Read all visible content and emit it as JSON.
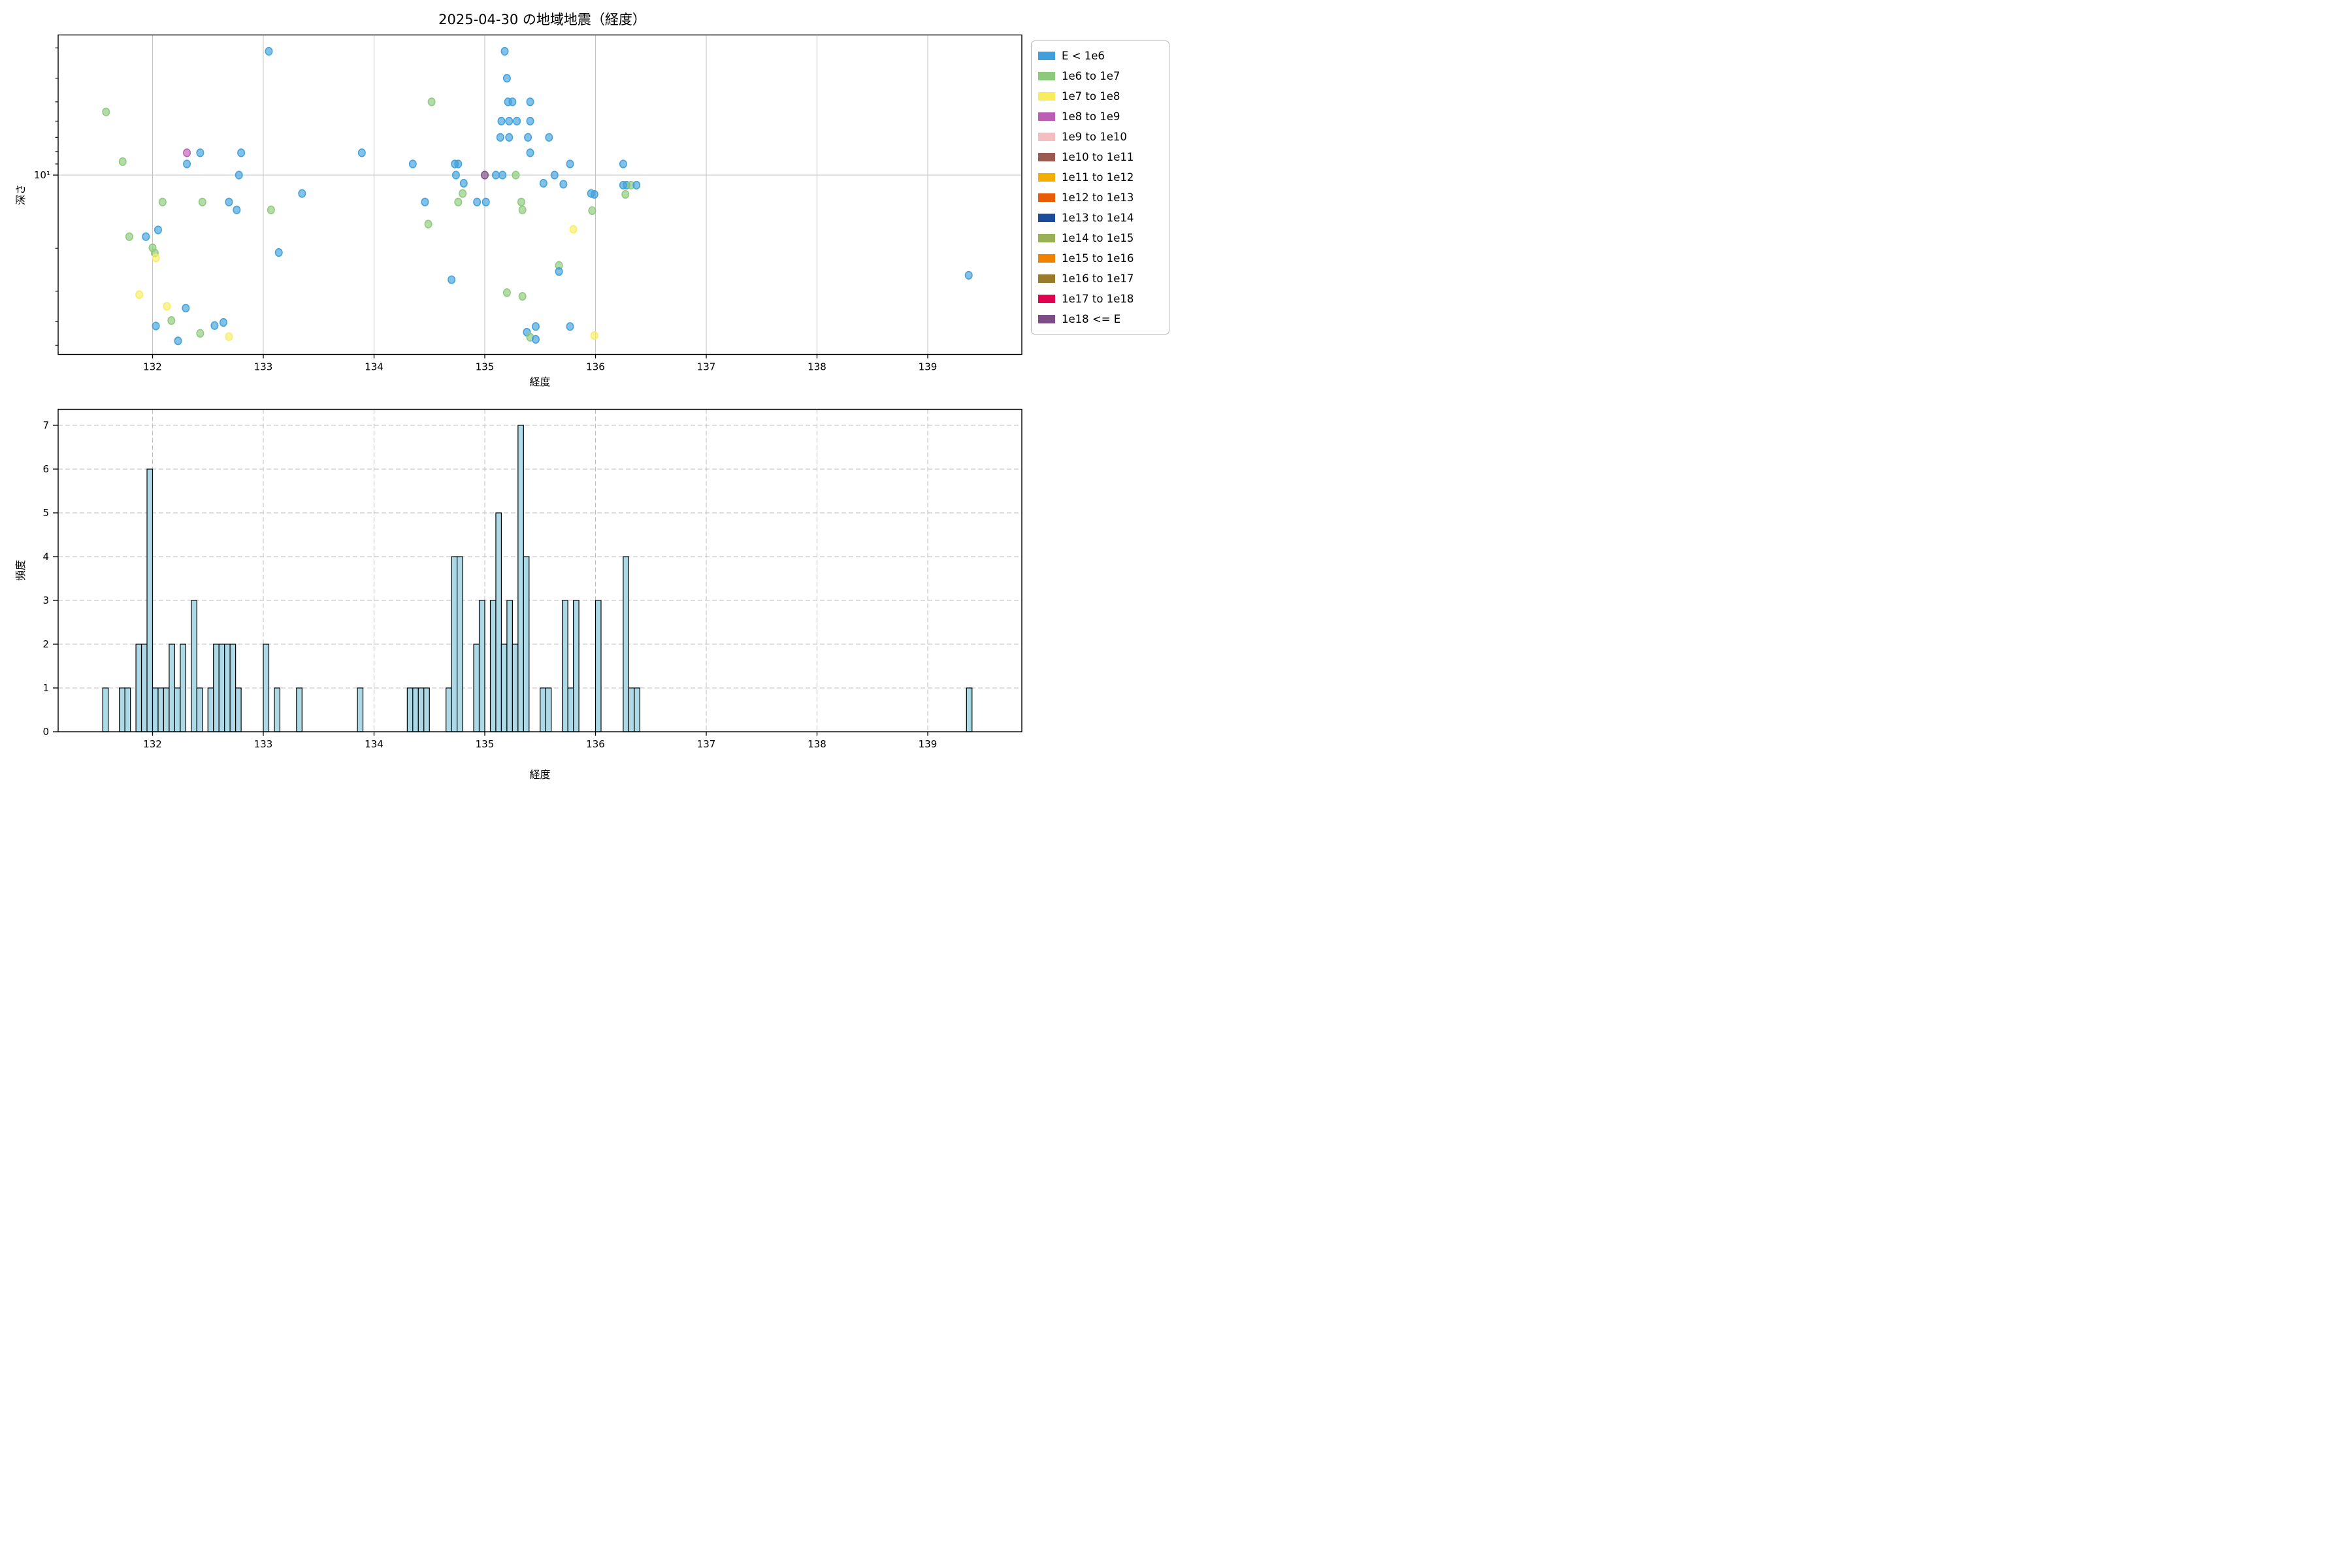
{
  "title": "2025-04-30 の地域地震（経度）",
  "scatter_plot": {
    "xlabel": "経度",
    "ylabel": "深さ",
    "x_ticks": [
      132,
      133,
      134,
      135,
      136,
      137,
      138,
      139
    ],
    "y_major_tick_label": "10¹",
    "y_minor_ticks": [
      3,
      4,
      5,
      6,
      7,
      8,
      9,
      20,
      30,
      40,
      50
    ]
  },
  "histogram_plot": {
    "xlabel": "経度",
    "ylabel": "頻度",
    "x_ticks": [
      132,
      133,
      134,
      135,
      136,
      137,
      138,
      139
    ],
    "y_ticks": [
      0,
      1,
      2,
      3,
      4,
      5,
      6,
      7
    ]
  },
  "legend": [
    {
      "label": "E < 1e6",
      "color": "#3FA0DC"
    },
    {
      "label": "1e6 to 1e7",
      "color": "#8CC97A"
    },
    {
      "label": "1e7 to 1e8",
      "color": "#F9EC5F"
    },
    {
      "label": "1e8 to 1e9",
      "color": "#BC5FB4"
    },
    {
      "label": "1e9 to 1e10",
      "color": "#F4BDC2"
    },
    {
      "label": "1e10 to 1e11",
      "color": "#9B5B53"
    },
    {
      "label": "1e11 to 1e12",
      "color": "#F2AE02"
    },
    {
      "label": "1e12 to 1e13",
      "color": "#E85D04"
    },
    {
      "label": "1e13 to 1e14",
      "color": "#1C4B9B"
    },
    {
      "label": "1e14 to 1e15",
      "color": "#9AB055"
    },
    {
      "label": "1e15 to 1e16",
      "color": "#F08200"
    },
    {
      "label": "1e16 to 1e17",
      "color": "#9A7A2B"
    },
    {
      "label": "1e17 to 1e18",
      "color": "#E00150"
    },
    {
      "label": "1e18 <= E",
      "color": "#7D4E86"
    }
  ],
  "style": {
    "hist_bar_fill": "#ADD8E6",
    "hist_bar_edge": "#000000",
    "grid_solid": "#c3c3c3",
    "grid_dashed": "#bdbdbd",
    "frame": "#000000",
    "marker_opacity": 0.65
  },
  "chart_data": [
    {
      "type": "scatter",
      "title": "2025-04-30 の地域地震（経度）",
      "xlabel": "経度",
      "ylabel": "深さ",
      "x_range": [
        131.15,
        139.85
      ],
      "y_scale": "log, inverted (depth increases downward)",
      "y_range_depth_km": [
        2.7,
        54
      ],
      "grid": "solid gray vertical lines each degree; horizontal line at depth 10",
      "legend_position": "outside upper right",
      "points_format": "[longitude_deg, depth_km, legend_category_index]",
      "points": [
        [
          131.58,
          5.5,
          1
        ],
        [
          131.73,
          8.8,
          1
        ],
        [
          131.79,
          17.9,
          1
        ],
        [
          131.88,
          31.0,
          2
        ],
        [
          131.94,
          17.9,
          0
        ],
        [
          132.0,
          19.9,
          1
        ],
        [
          132.02,
          20.9,
          1
        ],
        [
          132.03,
          21.9,
          2
        ],
        [
          132.03,
          41.7,
          0
        ],
        [
          132.05,
          16.8,
          0
        ],
        [
          132.09,
          12.9,
          1
        ],
        [
          132.13,
          34.6,
          2
        ],
        [
          132.17,
          39.6,
          1
        ],
        [
          132.23,
          48.0,
          0
        ],
        [
          132.3,
          35.2,
          0
        ],
        [
          132.31,
          8.1,
          3
        ],
        [
          132.31,
          9.0,
          0
        ],
        [
          132.43,
          8.1,
          0
        ],
        [
          132.43,
          44.7,
          1
        ],
        [
          132.45,
          12.9,
          1
        ],
        [
          132.56,
          41.5,
          0
        ],
        [
          132.64,
          40.3,
          0
        ],
        [
          132.69,
          12.9,
          0
        ],
        [
          132.69,
          46.1,
          2
        ],
        [
          132.76,
          13.9,
          0
        ],
        [
          132.78,
          10.0,
          0
        ],
        [
          132.8,
          8.1,
          0
        ],
        [
          133.05,
          3.1,
          0
        ],
        [
          133.07,
          13.9,
          1
        ],
        [
          133.14,
          20.8,
          0
        ],
        [
          133.35,
          11.9,
          0
        ],
        [
          133.89,
          8.1,
          0
        ],
        [
          134.35,
          9.0,
          0
        ],
        [
          134.46,
          12.9,
          0
        ],
        [
          134.49,
          15.9,
          1
        ],
        [
          134.52,
          5.0,
          1
        ],
        [
          134.7,
          26.9,
          0
        ],
        [
          134.73,
          9.0,
          0
        ],
        [
          134.76,
          9.0,
          0
        ],
        [
          134.74,
          10.0,
          0
        ],
        [
          134.76,
          12.9,
          1
        ],
        [
          134.8,
          11.9,
          1
        ],
        [
          134.81,
          10.8,
          0
        ],
        [
          134.93,
          12.9,
          0
        ],
        [
          135.0,
          10.0,
          13
        ],
        [
          135.01,
          12.9,
          0
        ],
        [
          135.1,
          10.0,
          0
        ],
        [
          135.14,
          7.0,
          0
        ],
        [
          135.15,
          6.0,
          0
        ],
        [
          135.16,
          10.0,
          0
        ],
        [
          135.18,
          3.1,
          0
        ],
        [
          135.2,
          4.0,
          0
        ],
        [
          135.2,
          30.4,
          1
        ],
        [
          135.21,
          5.0,
          0
        ],
        [
          135.22,
          6.0,
          0
        ],
        [
          135.22,
          7.0,
          0
        ],
        [
          135.25,
          5.0,
          0
        ],
        [
          135.28,
          10.0,
          1
        ],
        [
          135.29,
          6.0,
          0
        ],
        [
          135.33,
          12.9,
          1
        ],
        [
          135.34,
          13.9,
          1
        ],
        [
          135.34,
          31.5,
          1
        ],
        [
          135.38,
          44.2,
          0
        ],
        [
          135.39,
          7.0,
          0
        ],
        [
          135.41,
          5.0,
          0
        ],
        [
          135.41,
          6.0,
          0
        ],
        [
          135.41,
          8.1,
          0
        ],
        [
          135.41,
          46.4,
          1
        ],
        [
          135.46,
          41.9,
          0
        ],
        [
          135.46,
          47.3,
          0
        ],
        [
          135.53,
          10.8,
          0
        ],
        [
          135.58,
          7.0,
          0
        ],
        [
          135.63,
          10.0,
          0
        ],
        [
          135.67,
          23.5,
          1
        ],
        [
          135.67,
          24.9,
          0
        ],
        [
          135.71,
          10.9,
          0
        ],
        [
          135.77,
          9.0,
          0
        ],
        [
          135.77,
          41.9,
          0
        ],
        [
          135.8,
          16.7,
          2
        ],
        [
          135.96,
          11.9,
          0
        ],
        [
          135.97,
          14.0,
          1
        ],
        [
          135.99,
          12.0,
          0
        ],
        [
          135.99,
          45.6,
          2
        ],
        [
          136.25,
          9.0,
          0
        ],
        [
          136.25,
          11.0,
          0
        ],
        [
          136.28,
          11.0,
          0
        ],
        [
          136.27,
          12.0,
          1
        ],
        [
          136.32,
          11.0,
          1
        ],
        [
          136.37,
          11.0,
          0
        ],
        [
          139.37,
          25.8,
          0
        ]
      ]
    },
    {
      "type": "histogram",
      "xlabel": "経度",
      "ylabel": "頻度",
      "x_range": [
        131.15,
        139.85
      ],
      "ylim": [
        0,
        7.35
      ],
      "bin_width": 0.05,
      "grid": "dashed gray, horizontal at 1..7 and vertical each degree",
      "bins_format": "[bin_center_longitude, count]",
      "bins": [
        [
          131.575,
          1
        ],
        [
          131.725,
          1
        ],
        [
          131.775,
          1
        ],
        [
          131.875,
          2
        ],
        [
          131.925,
          2
        ],
        [
          131.975,
          6
        ],
        [
          132.025,
          1
        ],
        [
          132.075,
          1
        ],
        [
          132.125,
          1
        ],
        [
          132.175,
          2
        ],
        [
          132.225,
          1
        ],
        [
          132.275,
          2
        ],
        [
          132.375,
          3
        ],
        [
          132.425,
          1
        ],
        [
          132.525,
          1
        ],
        [
          132.575,
          2
        ],
        [
          132.625,
          2
        ],
        [
          132.675,
          2
        ],
        [
          132.725,
          2
        ],
        [
          132.775,
          1
        ],
        [
          133.025,
          2
        ],
        [
          133.125,
          1
        ],
        [
          133.325,
          1
        ],
        [
          133.875,
          1
        ],
        [
          134.325,
          1
        ],
        [
          134.375,
          1
        ],
        [
          134.425,
          1
        ],
        [
          134.475,
          1
        ],
        [
          134.675,
          1
        ],
        [
          134.725,
          4
        ],
        [
          134.775,
          4
        ],
        [
          134.925,
          2
        ],
        [
          134.975,
          3
        ],
        [
          135.075,
          3
        ],
        [
          135.125,
          5
        ],
        [
          135.175,
          2
        ],
        [
          135.225,
          3
        ],
        [
          135.275,
          2
        ],
        [
          135.325,
          7
        ],
        [
          135.375,
          4
        ],
        [
          135.525,
          1
        ],
        [
          135.575,
          1
        ],
        [
          135.725,
          3
        ],
        [
          135.775,
          1
        ],
        [
          135.825,
          3
        ],
        [
          136.025,
          3
        ],
        [
          136.275,
          4
        ],
        [
          136.325,
          1
        ],
        [
          136.375,
          1
        ],
        [
          139.375,
          1
        ]
      ]
    }
  ]
}
